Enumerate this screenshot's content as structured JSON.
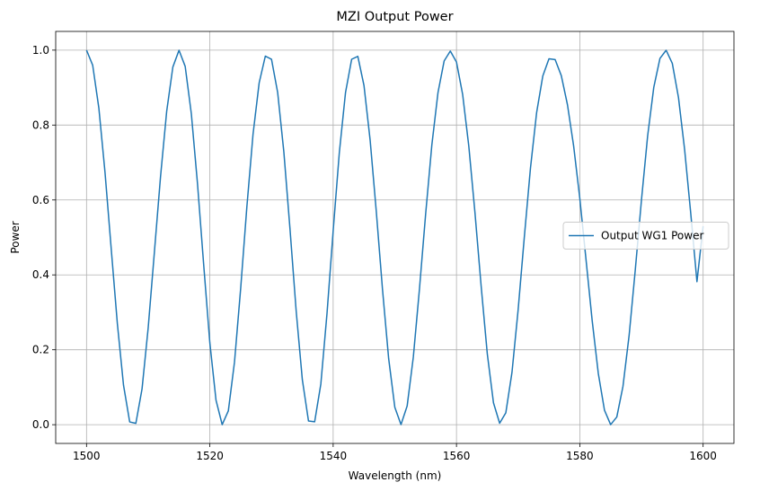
{
  "chart_data": {
    "type": "line",
    "title": "MZI Output Power",
    "xlabel": "Wavelength (nm)",
    "ylabel": "Power",
    "xlim": [
      1495,
      1605
    ],
    "ylim": [
      -0.05,
      1.05
    ],
    "xticks": [
      1500,
      1520,
      1540,
      1560,
      1580,
      1600
    ],
    "xtick_labels": [
      "1500",
      "1520",
      "1540",
      "1560",
      "1580",
      "1600"
    ],
    "yticks": [
      0.0,
      0.2,
      0.4,
      0.6,
      0.8,
      1.0
    ],
    "ytick_labels": [
      "0.0",
      "0.2",
      "0.4",
      "0.6",
      "0.8",
      "1.0"
    ],
    "grid": true,
    "legend_position": "center-right",
    "series": [
      {
        "name": "Output WG1 Power",
        "color": "#1f77b4",
        "x": [
          1500.0,
          1501.0,
          1502.0,
          1503.0,
          1504.0,
          1505.0,
          1506.0,
          1507.0,
          1508.0,
          1509.0,
          1510.0,
          1511.0,
          1512.0,
          1513.0,
          1514.0,
          1515.0,
          1516.0,
          1517.0,
          1518.0,
          1519.0,
          1520.0,
          1521.0,
          1522.0,
          1523.0,
          1524.0,
          1525.0,
          1526.0,
          1527.0,
          1528.0,
          1529.0,
          1530.0,
          1531.0,
          1532.0,
          1533.0,
          1534.0,
          1535.0,
          1536.0,
          1537.0,
          1538.0,
          1539.0,
          1540.0,
          1541.0,
          1542.0,
          1543.0,
          1544.0,
          1545.0,
          1546.0,
          1547.0,
          1548.0,
          1549.0,
          1550.0,
          1551.0,
          1552.0,
          1553.0,
          1554.0,
          1555.0,
          1556.0,
          1557.0,
          1558.0,
          1559.0,
          1560.0,
          1561.0,
          1562.0,
          1563.0,
          1564.0,
          1565.0,
          1566.0,
          1567.0,
          1568.0,
          1569.0,
          1570.0,
          1571.0,
          1572.0,
          1573.0,
          1574.0,
          1575.0,
          1576.0,
          1577.0,
          1578.0,
          1579.0,
          1580.0,
          1581.0,
          1582.0,
          1583.0,
          1584.0,
          1585.0,
          1586.0,
          1587.0,
          1588.0,
          1589.0,
          1590.0,
          1591.0,
          1592.0,
          1593.0,
          1594.0,
          1595.0,
          1596.0,
          1597.0,
          1598.0,
          1599.0,
          1600.0
        ],
        "y": [
          1.0,
          0.9597,
          0.8452,
          0.6732,
          0.4705,
          0.2699,
          0.1054,
          0.0074,
          0.0037,
          0.0952,
          0.2584,
          0.4595,
          0.6618,
          0.8368,
          0.9549,
          0.9997,
          0.9567,
          0.8299,
          0.643,
          0.427,
          0.2184,
          0.0655,
          0.0001,
          0.0369,
          0.1676,
          0.3637,
          0.5808,
          0.7749,
          0.9128,
          0.9841,
          0.9756,
          0.8868,
          0.7286,
          0.5223,
          0.3038,
          0.1201,
          0.0098,
          0.0077,
          0.1086,
          0.2966,
          0.5173,
          0.7265,
          0.8864,
          0.9757,
          0.9834,
          0.9055,
          0.7591,
          0.5682,
          0.3614,
          0.1764,
          0.0464,
          0.0003,
          0.05,
          0.1805,
          0.363,
          0.5629,
          0.7461,
          0.8867,
          0.9713,
          0.9975,
          0.9681,
          0.8817,
          0.7434,
          0.5656,
          0.3701,
          0.1889,
          0.0585,
          0.0039,
          0.0317,
          0.1396,
          0.3068,
          0.5006,
          0.6852,
          0.8335,
          0.9312,
          0.9768,
          0.9749,
          0.9318,
          0.8542,
          0.7442,
          0.6044,
          0.4422,
          0.2789,
          0.1369,
          0.0389,
          0.0002,
          0.0206,
          0.1022,
          0.2387,
          0.4135,
          0.6,
          0.7706,
          0.9009,
          0.978,
          0.9997,
          0.9649,
          0.8739,
          0.7346,
          0.5631,
          0.3818,
          0.53
        ]
      }
    ]
  }
}
